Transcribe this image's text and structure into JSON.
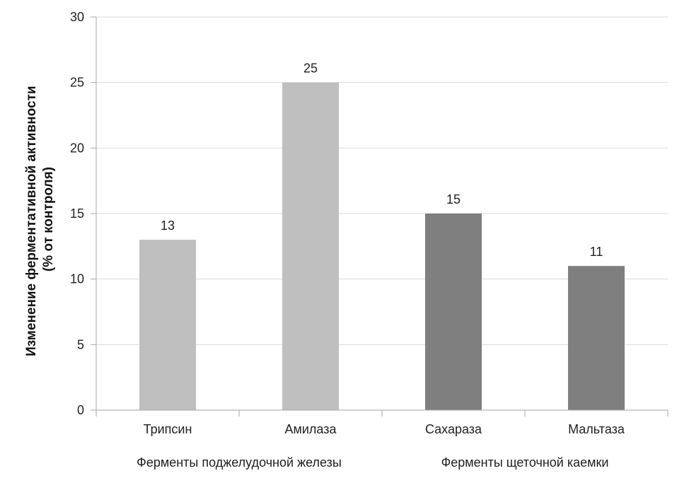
{
  "chart_data": {
    "type": "bar",
    "ylabel_lines": [
      "Изменение ферментативной активности",
      "(% от контроля)"
    ],
    "categories": [
      "Трипсин",
      "Амилаза",
      "Сахараза",
      "Мальтаза"
    ],
    "values": [
      13,
      25,
      15,
      11
    ],
    "bar_colors": [
      "#bfbfbf",
      "#bfbfbf",
      "#7f7f7f",
      "#7f7f7f"
    ],
    "groups": [
      {
        "label": "Ферменты поджелудочной железы",
        "categories": [
          "Трипсин",
          "Амилаза"
        ]
      },
      {
        "label": "Ферменты щеточной каемки",
        "categories": [
          "Сахараза",
          "Мальтаза"
        ]
      }
    ],
    "ylim": [
      0,
      30
    ],
    "yticks": [
      0,
      5,
      10,
      15,
      20,
      25,
      30
    ],
    "grid": true,
    "data_labels": true
  }
}
